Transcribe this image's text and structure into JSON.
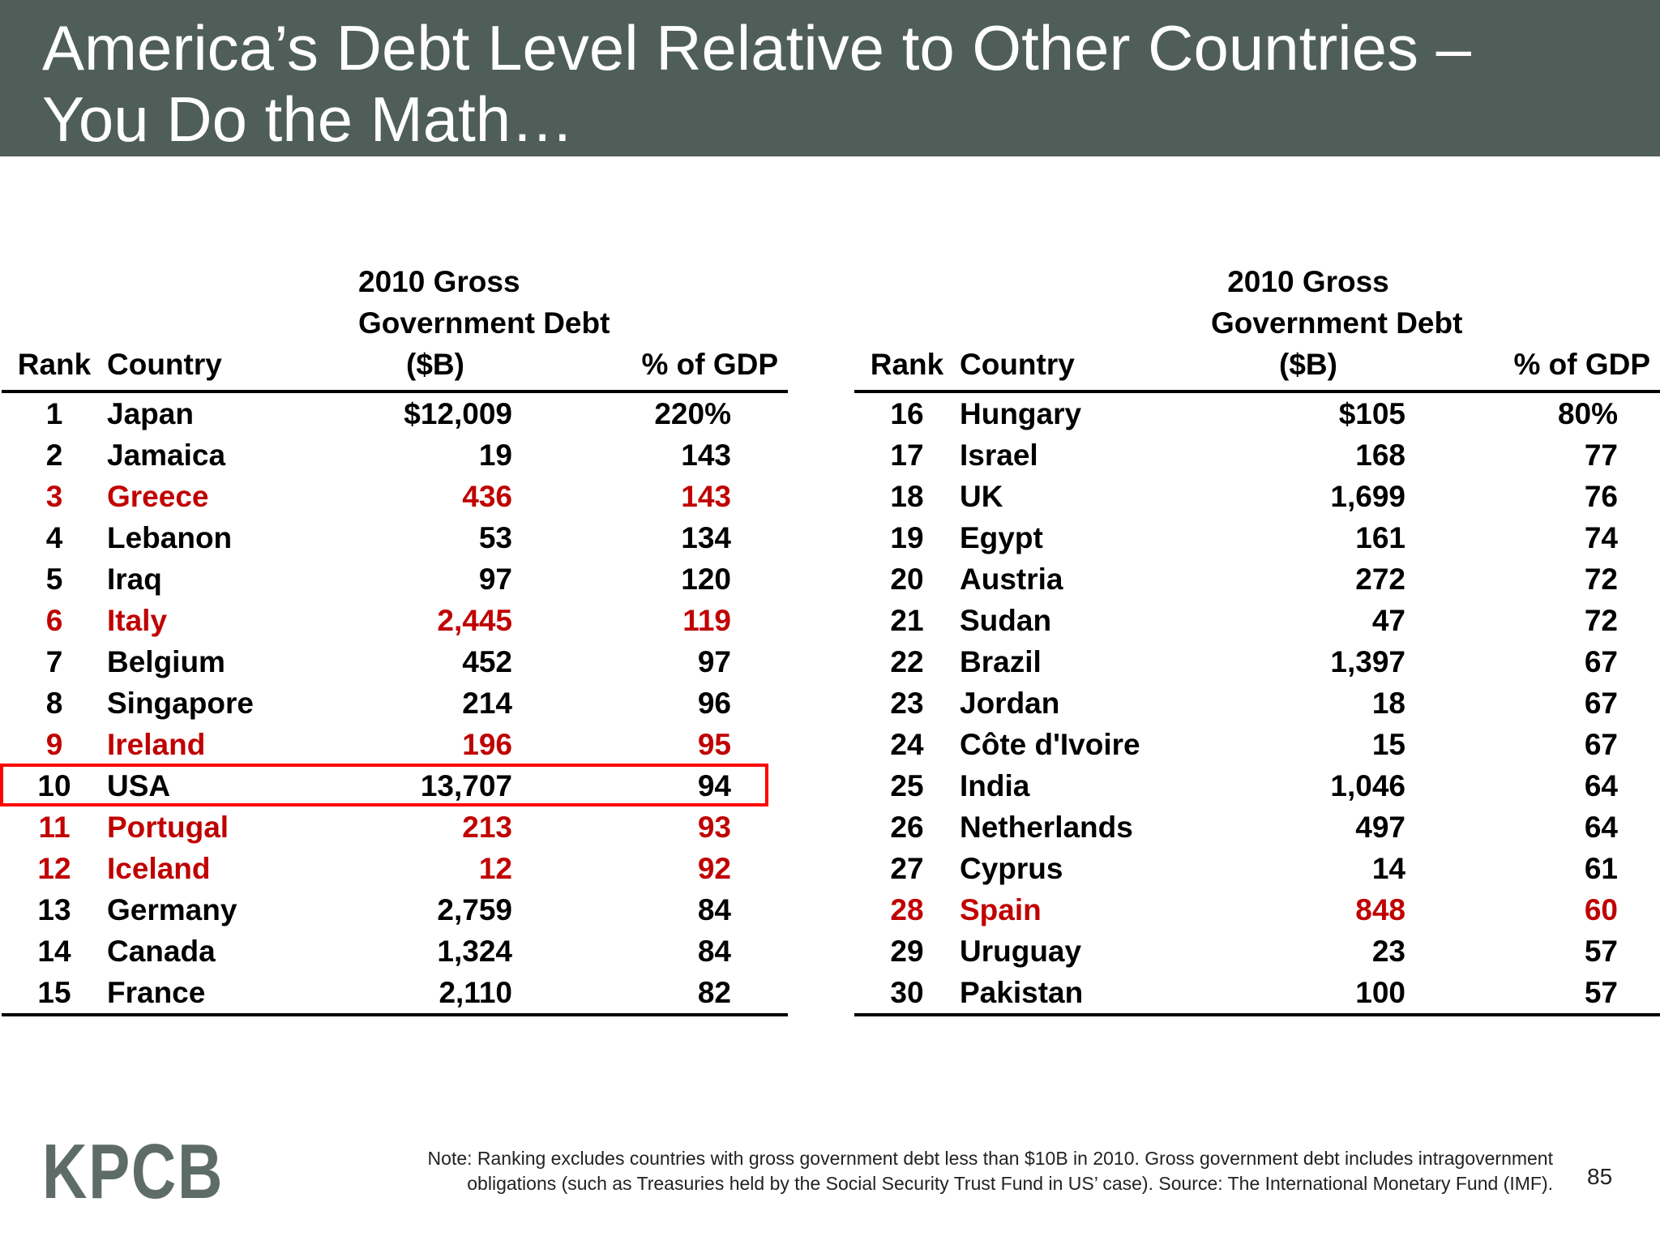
{
  "title": {
    "line1": "America’s Debt Level Relative to Other Countries –",
    "line2": "You Do the Math…"
  },
  "columns": {
    "rank": "Rank",
    "country": "Country",
    "debt_line1": "2010 Gross",
    "debt_line2": "Government Debt",
    "debt_line3": "($B)",
    "pct": "% of GDP"
  },
  "colors": {
    "title_bar": "#4f5e59",
    "highlight_red": "#c00000",
    "box_red": "#ff0000",
    "logo": "#5e6c67"
  },
  "left_table": [
    {
      "rank": "1",
      "country": "Japan",
      "debt": "$12,009",
      "pct": "220%",
      "highlight": false
    },
    {
      "rank": "2",
      "country": "Jamaica",
      "debt": "19",
      "pct": "143",
      "highlight": false
    },
    {
      "rank": "3",
      "country": "Greece",
      "debt": "436",
      "pct": "143",
      "highlight": true
    },
    {
      "rank": "4",
      "country": "Lebanon",
      "debt": "53",
      "pct": "134",
      "highlight": false
    },
    {
      "rank": "5",
      "country": "Iraq",
      "debt": "97",
      "pct": "120",
      "highlight": false
    },
    {
      "rank": "6",
      "country": "Italy",
      "debt": "2,445",
      "pct": "119",
      "highlight": true
    },
    {
      "rank": "7",
      "country": "Belgium",
      "debt": "452",
      "pct": "97",
      "highlight": false
    },
    {
      "rank": "8",
      "country": "Singapore",
      "debt": "214",
      "pct": "96",
      "highlight": false
    },
    {
      "rank": "9",
      "country": "Ireland",
      "debt": "196",
      "pct": "95",
      "highlight": true
    },
    {
      "rank": "10",
      "country": "USA",
      "debt": "13,707",
      "pct": "94",
      "highlight": false,
      "boxed": true
    },
    {
      "rank": "11",
      "country": "Portugal",
      "debt": "213",
      "pct": "93",
      "highlight": true
    },
    {
      "rank": "12",
      "country": "Iceland",
      "debt": "12",
      "pct": "92",
      "highlight": true
    },
    {
      "rank": "13",
      "country": "Germany",
      "debt": "2,759",
      "pct": "84",
      "highlight": false
    },
    {
      "rank": "14",
      "country": "Canada",
      "debt": "1,324",
      "pct": "84",
      "highlight": false
    },
    {
      "rank": "15",
      "country": "France",
      "debt": "2,110",
      "pct": "82",
      "highlight": false
    }
  ],
  "right_table": [
    {
      "rank": "16",
      "country": "Hungary",
      "debt": "$105",
      "pct": "80%",
      "highlight": false
    },
    {
      "rank": "17",
      "country": "Israel",
      "debt": "168",
      "pct": "77",
      "highlight": false
    },
    {
      "rank": "18",
      "country": "UK",
      "debt": "1,699",
      "pct": "76",
      "highlight": false
    },
    {
      "rank": "19",
      "country": "Egypt",
      "debt": "161",
      "pct": "74",
      "highlight": false
    },
    {
      "rank": "20",
      "country": "Austria",
      "debt": "272",
      "pct": "72",
      "highlight": false
    },
    {
      "rank": "21",
      "country": "Sudan",
      "debt": "47",
      "pct": "72",
      "highlight": false
    },
    {
      "rank": "22",
      "country": "Brazil",
      "debt": "1,397",
      "pct": "67",
      "highlight": false
    },
    {
      "rank": "23",
      "country": "Jordan",
      "debt": "18",
      "pct": "67",
      "highlight": false
    },
    {
      "rank": "24",
      "country": "Côte d'Ivoire",
      "debt": "15",
      "pct": "67",
      "highlight": false
    },
    {
      "rank": "25",
      "country": "India",
      "debt": "1,046",
      "pct": "64",
      "highlight": false
    },
    {
      "rank": "26",
      "country": "Netherlands",
      "debt": "497",
      "pct": "64",
      "highlight": false
    },
    {
      "rank": "27",
      "country": "Cyprus",
      "debt": "14",
      "pct": "61",
      "highlight": false
    },
    {
      "rank": "28",
      "country": "Spain",
      "debt": "848",
      "pct": "60",
      "highlight": true
    },
    {
      "rank": "29",
      "country": "Uruguay",
      "debt": "23",
      "pct": "57",
      "highlight": false
    },
    {
      "rank": "30",
      "country": "Pakistan",
      "debt": "100",
      "pct": "57",
      "highlight": false
    }
  ],
  "footer": {
    "logo": "KPCB",
    "note_line1": "Note: Ranking excludes countries with gross government debt less than $10B in 2010.  Gross government debt includes intragovernment",
    "note_line2": "obligations (such as Treasuries held by the Social Security Trust Fund in US’ case). Source: The International Monetary Fund (IMF).",
    "page_number": "85"
  }
}
